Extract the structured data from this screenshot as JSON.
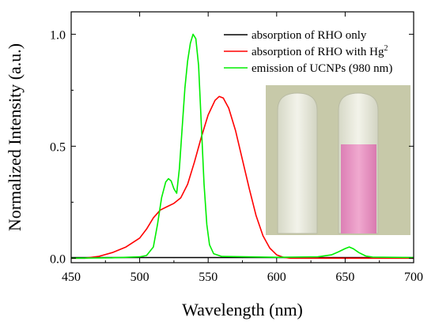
{
  "chart_data": {
    "type": "line",
    "xlabel": "Wavelength (nm)",
    "ylabel": "Normalized Intensity (a.u.)",
    "xlim": [
      450,
      700
    ],
    "ylim": [
      -0.02,
      1.1
    ],
    "x_ticks": [
      "450",
      "500",
      "550",
      "600",
      "650",
      "700"
    ],
    "y_ticks": [
      "0.0",
      "0.5",
      "1.0"
    ],
    "grid": false,
    "legend_position": "top-right",
    "inset_image": "photo of two vials: left clear, right pink",
    "series": [
      {
        "name": "absorption of RHO only",
        "color": "#000000",
        "points": [
          [
            450,
            0.003
          ],
          [
            500,
            0.003
          ],
          [
            550,
            0.003
          ],
          [
            600,
            0.003
          ],
          [
            650,
            0.003
          ],
          [
            700,
            0.003
          ]
        ]
      },
      {
        "name": "absorption of RHO with Hg",
        "name_sup": "2",
        "color": "#ff0000",
        "points": [
          [
            450,
            0.0
          ],
          [
            460,
            0.0
          ],
          [
            470,
            0.008
          ],
          [
            480,
            0.025
          ],
          [
            490,
            0.05
          ],
          [
            500,
            0.09
          ],
          [
            505,
            0.13
          ],
          [
            510,
            0.18
          ],
          [
            515,
            0.215
          ],
          [
            520,
            0.23
          ],
          [
            525,
            0.245
          ],
          [
            530,
            0.27
          ],
          [
            535,
            0.33
          ],
          [
            540,
            0.43
          ],
          [
            545,
            0.54
          ],
          [
            550,
            0.64
          ],
          [
            555,
            0.705
          ],
          [
            558,
            0.722
          ],
          [
            561,
            0.715
          ],
          [
            565,
            0.67
          ],
          [
            570,
            0.57
          ],
          [
            575,
            0.44
          ],
          [
            580,
            0.31
          ],
          [
            585,
            0.19
          ],
          [
            590,
            0.1
          ],
          [
            595,
            0.045
          ],
          [
            600,
            0.015
          ],
          [
            605,
            0.004
          ],
          [
            610,
            0.0
          ],
          [
            700,
            0.0
          ]
        ]
      },
      {
        "name": "emission of UCNPs (980 nm)",
        "color": "#00ee00",
        "points": [
          [
            450,
            0.0
          ],
          [
            480,
            0.002
          ],
          [
            500,
            0.006
          ],
          [
            505,
            0.012
          ],
          [
            510,
            0.05
          ],
          [
            513,
            0.15
          ],
          [
            516,
            0.27
          ],
          [
            519,
            0.34
          ],
          [
            521,
            0.355
          ],
          [
            523,
            0.345
          ],
          [
            525,
            0.31
          ],
          [
            527,
            0.29
          ],
          [
            529,
            0.4
          ],
          [
            531,
            0.58
          ],
          [
            533,
            0.76
          ],
          [
            535,
            0.88
          ],
          [
            537,
            0.96
          ],
          [
            539,
            1.0
          ],
          [
            541,
            0.98
          ],
          [
            543,
            0.86
          ],
          [
            545,
            0.6
          ],
          [
            547,
            0.33
          ],
          [
            549,
            0.15
          ],
          [
            551,
            0.06
          ],
          [
            554,
            0.02
          ],
          [
            560,
            0.008
          ],
          [
            600,
            0.004
          ],
          [
            630,
            0.006
          ],
          [
            640,
            0.015
          ],
          [
            645,
            0.028
          ],
          [
            650,
            0.043
          ],
          [
            653,
            0.05
          ],
          [
            656,
            0.042
          ],
          [
            660,
            0.025
          ],
          [
            665,
            0.01
          ],
          [
            670,
            0.005
          ],
          [
            700,
            0.003
          ]
        ]
      }
    ]
  }
}
